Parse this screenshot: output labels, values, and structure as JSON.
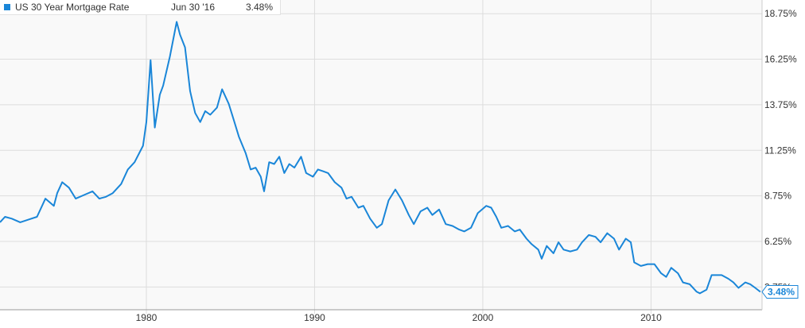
{
  "legend": {
    "series_name": "US 30 Year Mortgage Rate",
    "date": "Jun 30 '16",
    "value": "3.48%"
  },
  "colors": {
    "series": "#1a86d8",
    "plot_bg": "#f9f9f9",
    "grid": "#dddddd",
    "axis_text": "#333333"
  },
  "chart_data": {
    "type": "line",
    "title": "",
    "xlabel": "",
    "ylabel": "",
    "x_ticks": [
      "1980",
      "1990",
      "2000",
      "2010"
    ],
    "y_ticks": [
      "18.75%",
      "16.25%",
      "13.75%",
      "11.25%",
      "8.75%",
      "6.25%",
      "3.75%"
    ],
    "y_range": [
      2.5,
      19.5
    ],
    "x_range": [
      1971.3,
      2016.6
    ],
    "grid": true,
    "legend": "top-left",
    "last_value_label": "3.48%",
    "series": [
      {
        "name": "US 30 Year Mortgage Rate",
        "points": [
          [
            1971.3,
            7.3
          ],
          [
            1971.6,
            7.6
          ],
          [
            1972.0,
            7.5
          ],
          [
            1972.5,
            7.3
          ],
          [
            1973.0,
            7.45
          ],
          [
            1973.5,
            7.6
          ],
          [
            1974.0,
            8.6
          ],
          [
            1974.5,
            8.2
          ],
          [
            1974.7,
            8.9
          ],
          [
            1975.0,
            9.5
          ],
          [
            1975.4,
            9.2
          ],
          [
            1975.8,
            8.6
          ],
          [
            1976.3,
            8.8
          ],
          [
            1976.8,
            9.0
          ],
          [
            1977.2,
            8.6
          ],
          [
            1977.6,
            8.7
          ],
          [
            1978.0,
            8.9
          ],
          [
            1978.5,
            9.4
          ],
          [
            1978.9,
            10.2
          ],
          [
            1979.3,
            10.6
          ],
          [
            1979.8,
            11.5
          ],
          [
            1980.0,
            12.8
          ],
          [
            1980.25,
            16.2
          ],
          [
            1980.5,
            12.5
          ],
          [
            1980.8,
            14.3
          ],
          [
            1981.0,
            14.8
          ],
          [
            1981.4,
            16.4
          ],
          [
            1981.8,
            18.3
          ],
          [
            1982.0,
            17.6
          ],
          [
            1982.3,
            16.9
          ],
          [
            1982.6,
            14.5
          ],
          [
            1982.9,
            13.3
          ],
          [
            1983.2,
            12.8
          ],
          [
            1983.5,
            13.4
          ],
          [
            1983.8,
            13.2
          ],
          [
            1984.2,
            13.6
          ],
          [
            1984.5,
            14.6
          ],
          [
            1984.9,
            13.8
          ],
          [
            1985.2,
            12.9
          ],
          [
            1985.5,
            12.0
          ],
          [
            1985.9,
            11.1
          ],
          [
            1986.2,
            10.2
          ],
          [
            1986.5,
            10.3
          ],
          [
            1986.8,
            9.8
          ],
          [
            1987.0,
            9.0
          ],
          [
            1987.3,
            10.6
          ],
          [
            1987.6,
            10.5
          ],
          [
            1987.9,
            10.9
          ],
          [
            1988.2,
            10.0
          ],
          [
            1988.5,
            10.5
          ],
          [
            1988.8,
            10.3
          ],
          [
            1989.2,
            10.9
          ],
          [
            1989.5,
            10.0
          ],
          [
            1989.9,
            9.8
          ],
          [
            1990.2,
            10.2
          ],
          [
            1990.5,
            10.1
          ],
          [
            1990.8,
            10.0
          ],
          [
            1991.2,
            9.5
          ],
          [
            1991.6,
            9.2
          ],
          [
            1991.9,
            8.6
          ],
          [
            1992.2,
            8.7
          ],
          [
            1992.6,
            8.1
          ],
          [
            1992.9,
            8.2
          ],
          [
            1993.3,
            7.5
          ],
          [
            1993.7,
            7.0
          ],
          [
            1994.0,
            7.2
          ],
          [
            1994.4,
            8.5
          ],
          [
            1994.8,
            9.1
          ],
          [
            1995.2,
            8.5
          ],
          [
            1995.6,
            7.7
          ],
          [
            1995.9,
            7.2
          ],
          [
            1996.3,
            7.9
          ],
          [
            1996.7,
            8.1
          ],
          [
            1997.0,
            7.7
          ],
          [
            1997.4,
            8.0
          ],
          [
            1997.8,
            7.2
          ],
          [
            1998.2,
            7.1
          ],
          [
            1998.6,
            6.9
          ],
          [
            1998.9,
            6.8
          ],
          [
            1999.3,
            7.0
          ],
          [
            1999.7,
            7.8
          ],
          [
            2000.2,
            8.2
          ],
          [
            2000.5,
            8.1
          ],
          [
            2000.8,
            7.6
          ],
          [
            2001.1,
            7.0
          ],
          [
            2001.5,
            7.1
          ],
          [
            2001.9,
            6.8
          ],
          [
            2002.2,
            6.9
          ],
          [
            2002.6,
            6.4
          ],
          [
            2002.9,
            6.1
          ],
          [
            2003.3,
            5.8
          ],
          [
            2003.5,
            5.3
          ],
          [
            2003.8,
            6.0
          ],
          [
            2004.2,
            5.6
          ],
          [
            2004.5,
            6.2
          ],
          [
            2004.8,
            5.8
          ],
          [
            2005.2,
            5.7
          ],
          [
            2005.6,
            5.8
          ],
          [
            2005.9,
            6.2
          ],
          [
            2006.3,
            6.6
          ],
          [
            2006.7,
            6.5
          ],
          [
            2007.0,
            6.2
          ],
          [
            2007.4,
            6.7
          ],
          [
            2007.8,
            6.4
          ],
          [
            2008.1,
            5.8
          ],
          [
            2008.5,
            6.4
          ],
          [
            2008.8,
            6.2
          ],
          [
            2009.0,
            5.1
          ],
          [
            2009.4,
            4.9
          ],
          [
            2009.8,
            5.0
          ],
          [
            2010.2,
            5.0
          ],
          [
            2010.6,
            4.5
          ],
          [
            2010.9,
            4.3
          ],
          [
            2011.2,
            4.8
          ],
          [
            2011.6,
            4.5
          ],
          [
            2011.9,
            4.0
          ],
          [
            2012.3,
            3.9
          ],
          [
            2012.7,
            3.5
          ],
          [
            2012.9,
            3.4
          ],
          [
            2013.3,
            3.6
          ],
          [
            2013.6,
            4.4
          ],
          [
            2013.9,
            4.4
          ],
          [
            2014.2,
            4.4
          ],
          [
            2014.6,
            4.2
          ],
          [
            2014.9,
            4.0
          ],
          [
            2015.2,
            3.7
          ],
          [
            2015.6,
            4.0
          ],
          [
            2015.9,
            3.9
          ],
          [
            2016.2,
            3.7
          ],
          [
            2016.5,
            3.48
          ]
        ]
      }
    ]
  }
}
